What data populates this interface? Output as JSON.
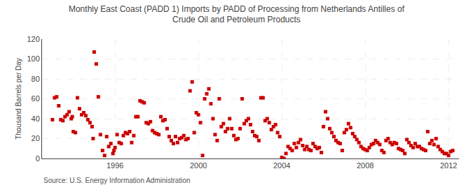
{
  "chart_data": {
    "type": "scatter",
    "title": "Monthly East Coast (PADD 1) Imports by PADD of Processing from Netherlands Antilles of\nCrude Oil and Petroleum Products",
    "ylabel": "Thousand Barrels per Day",
    "annotations": [
      "Source: U.S. Energy Information Administration"
    ],
    "color": "#cc0000",
    "marker": "square",
    "grid": true,
    "xlim": [
      1992.5,
      2012.5
    ],
    "ylim": [
      0,
      120
    ],
    "yticks": [
      0,
      20,
      40,
      60,
      80,
      100,
      120
    ],
    "xticks": [
      1996,
      2000,
      2004,
      2008,
      2012
    ],
    "x": [
      1993.0,
      1993.1,
      1993.2,
      1993.3,
      1993.4,
      1993.5,
      1993.6,
      1993.7,
      1993.8,
      1993.9,
      1993.95,
      1994.0,
      1994.1,
      1994.2,
      1994.3,
      1994.4,
      1994.5,
      1994.6,
      1994.7,
      1994.8,
      1994.9,
      1994.95,
      1995.0,
      1995.1,
      1995.2,
      1995.3,
      1995.4,
      1995.5,
      1995.6,
      1995.7,
      1995.8,
      1995.9,
      1995.95,
      1996.0,
      1996.1,
      1996.2,
      1996.3,
      1996.4,
      1996.5,
      1996.6,
      1996.7,
      1996.8,
      1996.9,
      1997.0,
      1997.1,
      1997.2,
      1997.3,
      1997.4,
      1997.5,
      1997.6,
      1997.7,
      1997.8,
      1997.9,
      1998.0,
      1998.1,
      1998.2,
      1998.3,
      1998.4,
      1998.5,
      1998.6,
      1998.7,
      1998.8,
      1998.9,
      1999.0,
      1999.1,
      1999.2,
      1999.3,
      1999.4,
      1999.5,
      1999.6,
      1999.7,
      1999.8,
      1999.9,
      2000.0,
      2000.1,
      2000.2,
      2000.3,
      2000.4,
      2000.5,
      2000.6,
      2000.7,
      2000.8,
      2000.9,
      2001.0,
      2001.1,
      2001.2,
      2001.3,
      2001.4,
      2001.5,
      2001.6,
      2001.7,
      2001.8,
      2001.9,
      2002.0,
      2002.1,
      2002.2,
      2002.3,
      2002.4,
      2002.5,
      2002.6,
      2002.7,
      2002.8,
      2002.9,
      2003.0,
      2003.1,
      2003.2,
      2003.3,
      2003.4,
      2003.5,
      2003.6,
      2003.7,
      2003.8,
      2003.9,
      2004.0,
      2004.1,
      2004.2,
      2004.3,
      2004.4,
      2004.5,
      2004.6,
      2004.7,
      2004.8,
      2004.9,
      2005.0,
      2005.1,
      2005.2,
      2005.3,
      2005.4,
      2005.5,
      2005.6,
      2005.7,
      2005.8,
      2005.9,
      2006.0,
      2006.1,
      2006.2,
      2006.3,
      2006.4,
      2006.5,
      2006.6,
      2006.7,
      2006.8,
      2006.9,
      2007.0,
      2007.1,
      2007.2,
      2007.3,
      2007.4,
      2007.5,
      2007.6,
      2007.7,
      2007.8,
      2007.9,
      2008.0,
      2008.1,
      2008.2,
      2008.3,
      2008.4,
      2008.5,
      2008.6,
      2008.7,
      2008.8,
      2008.9,
      2009.0,
      2009.1,
      2009.2,
      2009.3,
      2009.4,
      2009.5,
      2009.6,
      2009.7,
      2009.8,
      2009.9,
      2010.0,
      2010.1,
      2010.2,
      2010.3,
      2010.4,
      2010.5,
      2010.6,
      2010.7,
      2010.8,
      2010.9,
      2011.0,
      2011.1,
      2011.2,
      2011.3,
      2011.4,
      2011.5,
      2011.6,
      2011.7,
      2011.8,
      2011.9,
      2012.0,
      2012.1,
      2012.2
    ],
    "values": [
      39,
      61,
      62,
      53,
      39,
      38,
      42,
      44,
      47,
      40,
      42,
      27,
      26,
      61,
      50,
      44,
      46,
      43,
      39,
      36,
      32,
      20,
      107,
      95,
      62,
      24,
      8,
      3,
      22,
      12,
      15,
      5,
      8,
      11,
      24,
      16,
      15,
      23,
      26,
      25,
      27,
      16,
      23,
      42,
      42,
      58,
      57,
      56,
      36,
      35,
      37,
      28,
      26,
      25,
      24,
      42,
      38,
      39,
      30,
      22,
      18,
      15,
      22,
      16,
      20,
      21,
      23,
      19,
      20,
      68,
      77,
      26,
      46,
      44,
      36,
      3,
      60,
      65,
      70,
      55,
      40,
      24,
      18,
      60,
      32,
      35,
      27,
      30,
      40,
      30,
      23,
      19,
      20,
      30,
      60,
      35,
      38,
      40,
      34,
      27,
      23,
      22,
      18,
      61,
      61,
      38,
      40,
      36,
      29,
      32,
      34,
      26,
      22,
      1,
      0,
      5,
      12,
      10,
      8,
      15,
      11,
      16,
      19,
      13,
      9,
      12,
      9,
      8,
      15,
      12,
      10,
      11,
      6,
      32,
      47,
      40,
      30,
      26,
      22,
      18,
      16,
      15,
      8,
      26,
      29,
      35,
      31,
      25,
      22,
      19,
      16,
      12,
      10,
      9,
      8,
      11,
      14,
      15,
      18,
      16,
      14,
      8,
      6,
      18,
      20,
      16,
      14,
      16,
      15,
      10,
      9,
      8,
      5,
      19,
      16,
      13,
      11,
      15,
      12,
      12,
      10,
      9,
      8,
      27,
      15,
      18,
      14,
      20,
      12,
      9,
      7,
      5,
      5,
      3,
      7,
      8
    ]
  }
}
